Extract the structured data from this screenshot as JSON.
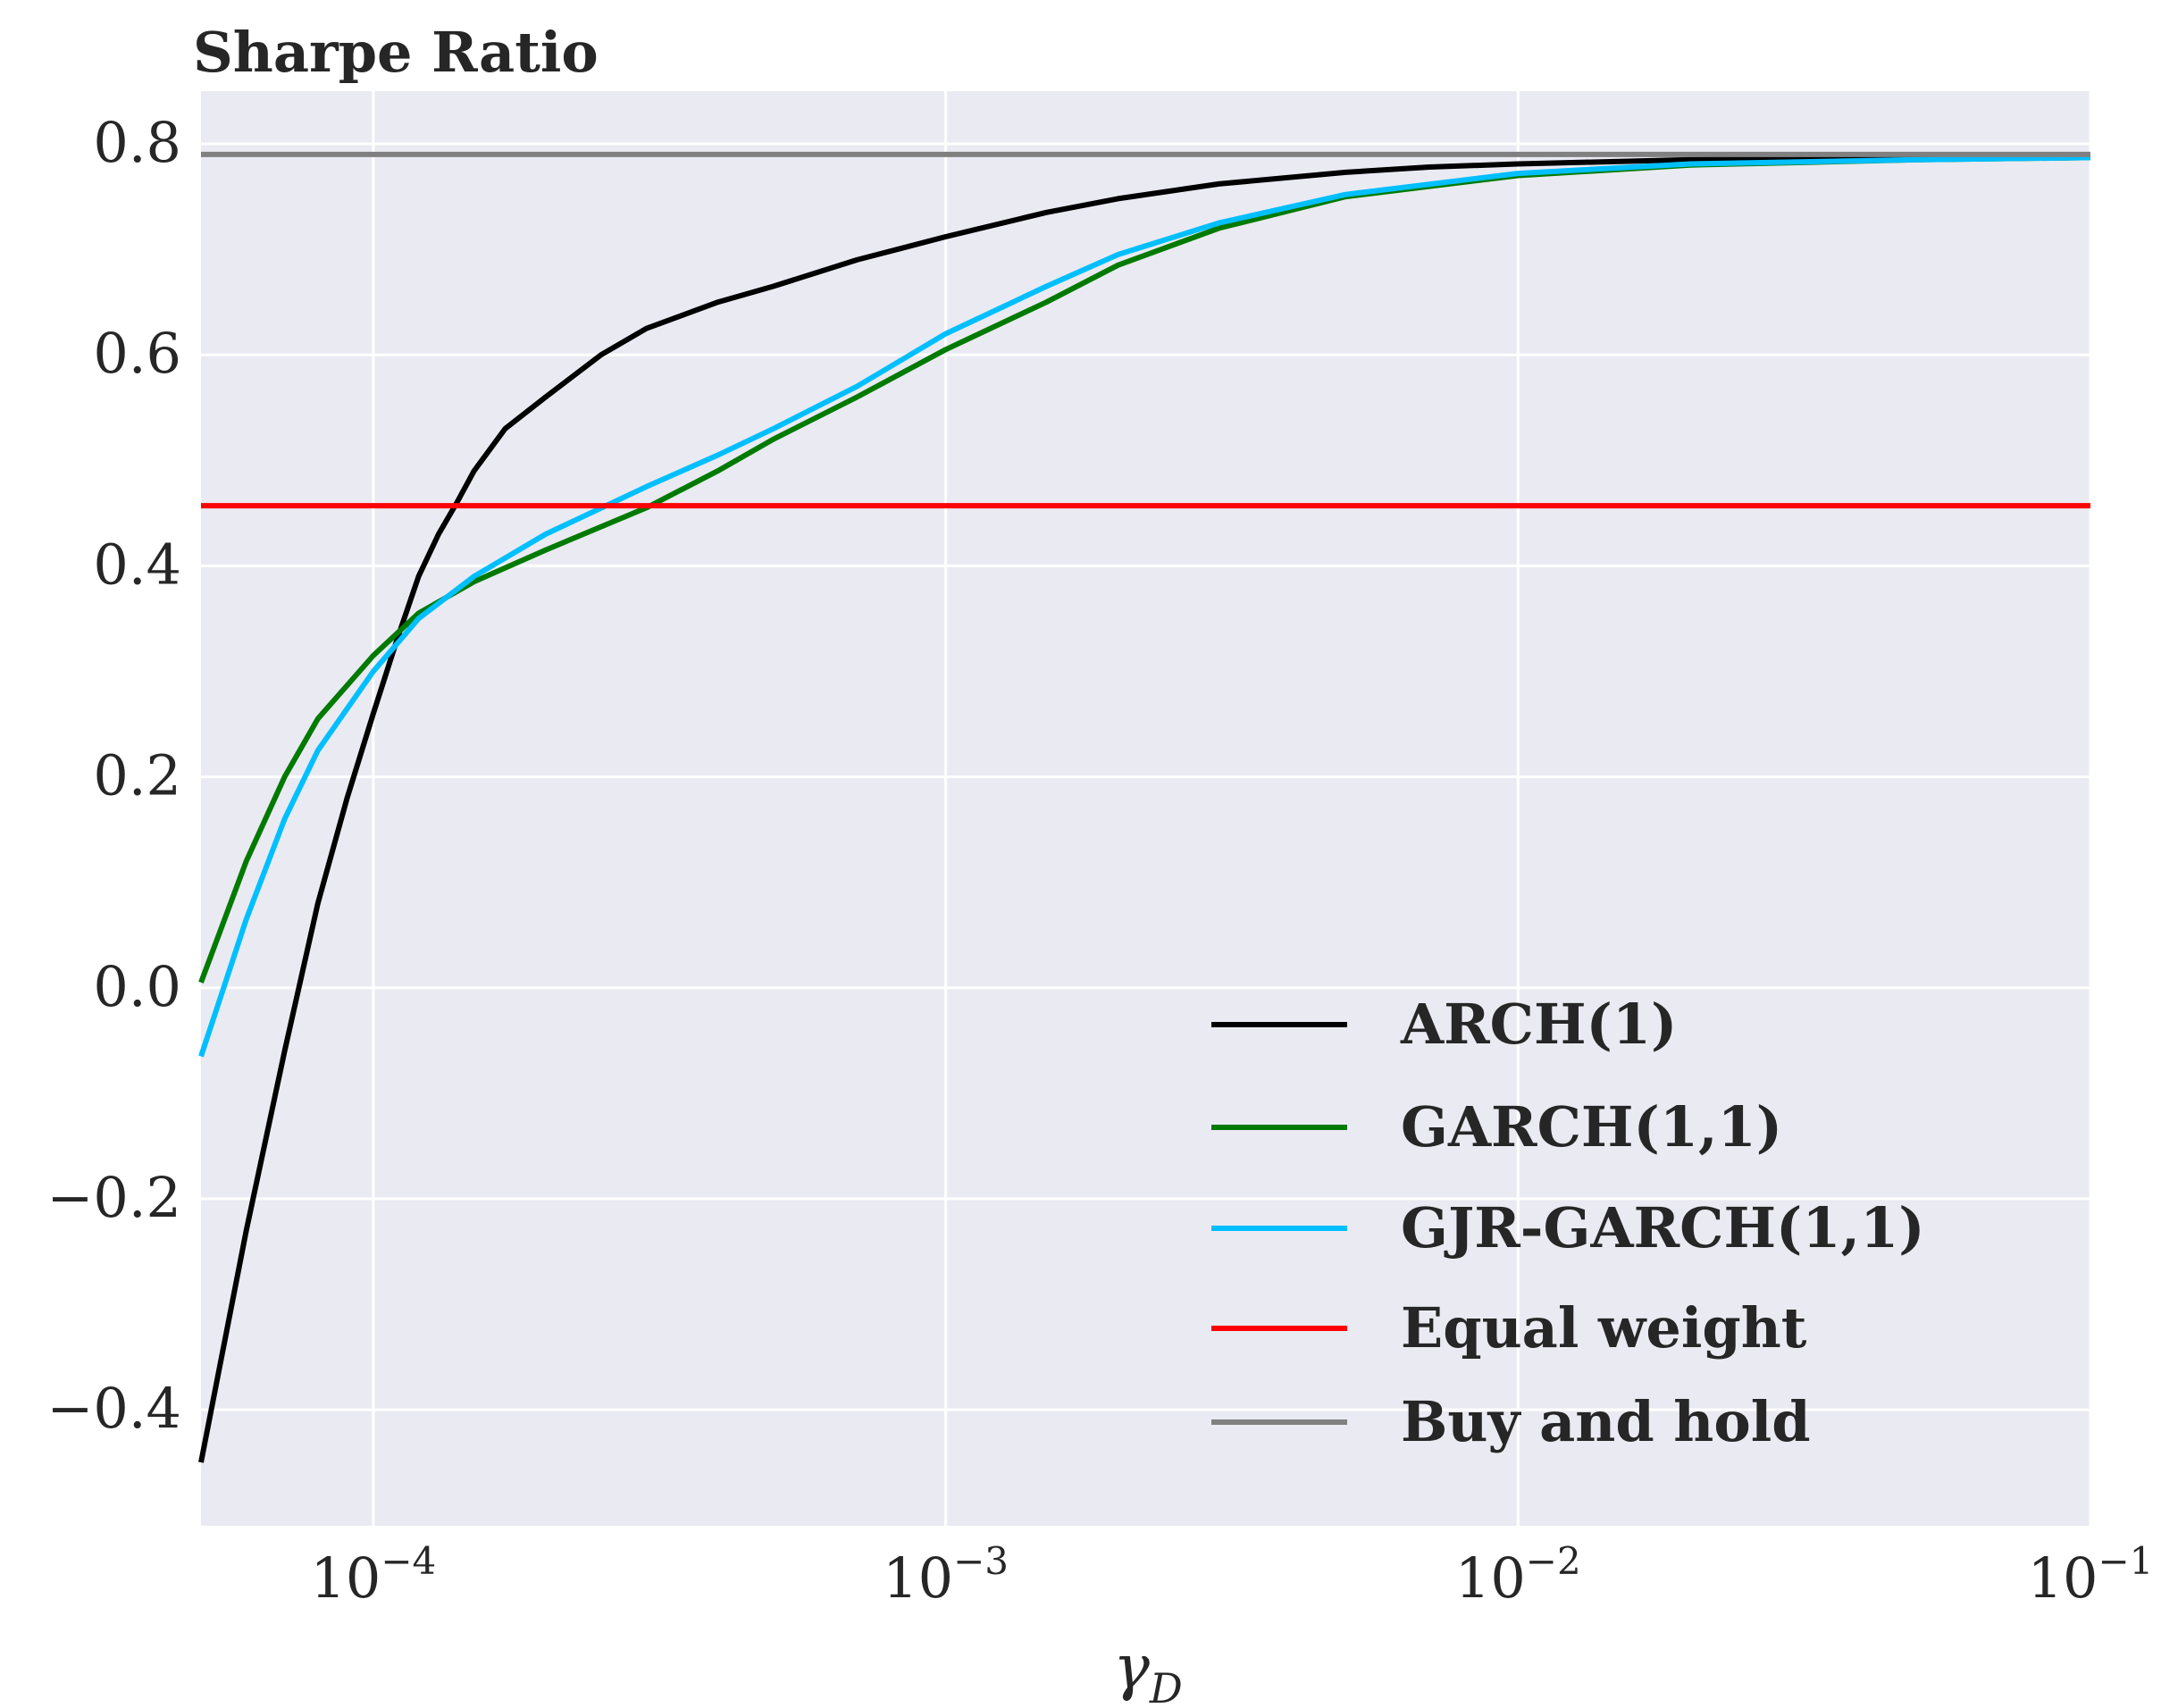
{
  "chart_data": {
    "type": "line",
    "title": "Sharpe Ratio",
    "xlabel": "γ",
    "xlabel_sub": "D",
    "xscale": "log",
    "xlim": [
      5e-05,
      0.1
    ],
    "ylim": [
      -0.51,
      0.85
    ],
    "x_ticks": [
      {
        "value": 0.0001,
        "base": "10",
        "exp": "−4"
      },
      {
        "value": 0.001,
        "base": "10",
        "exp": "−3"
      },
      {
        "value": 0.01,
        "base": "10",
        "exp": "−2"
      },
      {
        "value": 0.1,
        "base": "10",
        "exp": "−1"
      }
    ],
    "y_ticks": [
      {
        "value": -0.4,
        "label": "−0.4"
      },
      {
        "value": -0.2,
        "label": "−0.2"
      },
      {
        "value": 0.0,
        "label": "0.0"
      },
      {
        "value": 0.2,
        "label": "0.2"
      },
      {
        "value": 0.4,
        "label": "0.4"
      },
      {
        "value": 0.6,
        "label": "0.6"
      },
      {
        "value": 0.8,
        "label": "0.8"
      }
    ],
    "grid": true,
    "legend_position": "lower-right",
    "background": "#eaeaf2",
    "series": [
      {
        "name": "ARCH(1)",
        "color": "#000000",
        "x": [
          5e-05,
          6e-05,
          7e-05,
          8e-05,
          9e-05,
          0.0001,
          0.00011,
          0.00012,
          0.00013,
          0.00014,
          0.00015,
          0.00017,
          0.0002,
          0.00025,
          0.0003,
          0.0004,
          0.0005,
          0.0007,
          0.001,
          0.0015,
          0.002,
          0.003,
          0.005,
          0.007,
          0.01,
          0.02,
          0.05,
          0.1
        ],
        "y": [
          -0.45,
          -0.23,
          -0.06,
          0.08,
          0.18,
          0.26,
          0.33,
          0.39,
          0.43,
          0.46,
          0.49,
          0.53,
          0.56,
          0.6,
          0.625,
          0.65,
          0.665,
          0.69,
          0.712,
          0.735,
          0.748,
          0.762,
          0.773,
          0.778,
          0.781,
          0.785,
          0.787,
          0.788
        ]
      },
      {
        "name": "GARCH(1,1)",
        "color": "#007a00",
        "x": [
          5e-05,
          6e-05,
          7e-05,
          8e-05,
          0.0001,
          0.00012,
          0.00015,
          0.0002,
          0.0003,
          0.0004,
          0.0005,
          0.0007,
          0.001,
          0.0015,
          0.002,
          0.003,
          0.005,
          0.01,
          0.02,
          0.05,
          0.1
        ],
        "y": [
          0.005,
          0.12,
          0.2,
          0.255,
          0.315,
          0.355,
          0.385,
          0.415,
          0.455,
          0.49,
          0.52,
          0.56,
          0.605,
          0.65,
          0.685,
          0.72,
          0.75,
          0.77,
          0.78,
          0.785,
          0.787
        ]
      },
      {
        "name": "GJR-GARCH(1,1)",
        "color": "#00bfff",
        "x": [
          5e-05,
          6e-05,
          7e-05,
          8e-05,
          0.0001,
          0.00012,
          0.00015,
          0.0002,
          0.0003,
          0.0004,
          0.0005,
          0.0007,
          0.001,
          0.0015,
          0.002,
          0.003,
          0.005,
          0.01,
          0.02,
          0.05,
          0.1
        ],
        "y": [
          -0.065,
          0.065,
          0.16,
          0.225,
          0.3,
          0.35,
          0.39,
          0.43,
          0.475,
          0.505,
          0.53,
          0.57,
          0.62,
          0.665,
          0.695,
          0.725,
          0.752,
          0.772,
          0.781,
          0.785,
          0.787
        ]
      },
      {
        "name": "Equal weight",
        "color": "#ff0000",
        "x": [
          5e-05,
          0.1
        ],
        "y": [
          0.457,
          0.457
        ]
      },
      {
        "name": "Buy and hold",
        "color": "#808080",
        "x": [
          5e-05,
          0.1
        ],
        "y": [
          0.79,
          0.79
        ]
      }
    ]
  }
}
